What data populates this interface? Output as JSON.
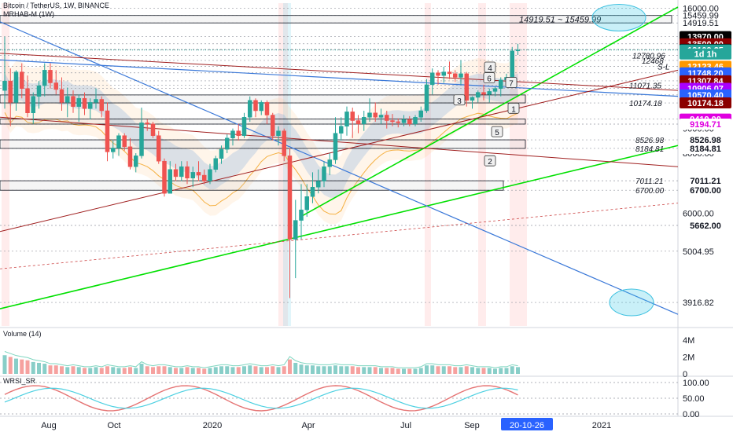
{
  "header": {
    "symbol": "Bitcoin / TetherUS, 1W, BINANCE",
    "indicator": "MRHAB-M (1W)"
  },
  "pane_titles": {
    "volume": "Volume (14)",
    "rsi": "WRSI_SR"
  },
  "price_scale": {
    "ticks": [
      "16000.00",
      "15459.99",
      "14919.51",
      "9000.00",
      "8000.00",
      "7000.00",
      "6000.00",
      "5004.95",
      "3916.82"
    ],
    "tags": [
      {
        "text": "13970.00",
        "bg": "#000000",
        "fg": "#ffffff"
      },
      {
        "text": "13500.00",
        "bg": "#8b0000",
        "fg": "#ffffff"
      },
      {
        "text": "13147.08",
        "bg": "#000000",
        "fg": "#ffffff"
      },
      {
        "text": "13109.25",
        "bg": "#26a69a",
        "fg": "#ffffff"
      },
      {
        "text": "1d 1h",
        "bg": "#26a69a",
        "fg": "#ffffff"
      },
      {
        "text": "12123.46",
        "bg": "#ff9800",
        "fg": "#ffffff"
      },
      {
        "text": "11748.20",
        "bg": "#2962ff",
        "fg": "#ffffff"
      },
      {
        "text": "11307.84",
        "bg": "#8b0000",
        "fg": "#ffffff"
      },
      {
        "text": "10906.07",
        "bg": "#aa00ff",
        "fg": "#ffffff"
      },
      {
        "text": "10570.40",
        "bg": "#2962ff",
        "fg": "#ffffff"
      },
      {
        "text": "10174.18",
        "bg": "#8b0000",
        "fg": "#ffffff"
      },
      {
        "text": "9419.00",
        "bg": "#e000e0",
        "fg": "#ffffff"
      },
      {
        "text": "9194.71",
        "bg": "#ffffff",
        "fg": "#e000e0"
      },
      {
        "text": "8526.98",
        "bg": "#ffffff",
        "fg": "#131722"
      },
      {
        "text": "8184.81",
        "bg": "#ffffff",
        "fg": "#131722"
      },
      {
        "text": "7011.21",
        "bg": "#ffffff",
        "fg": "#131722"
      },
      {
        "text": "6700.00",
        "bg": "#ffffff",
        "fg": "#131722"
      },
      {
        "text": "5662.00",
        "bg": "#ffffff",
        "fg": "#131722"
      }
    ]
  },
  "volume_scale": [
    "4M",
    "2M",
    "0"
  ],
  "rsi_scale": [
    "100.00",
    "50.00",
    "0.00"
  ],
  "time_axis": {
    "labels": [
      "Aug",
      "Oct",
      "2020",
      "Apr",
      "Jul",
      "Sep",
      "2021"
    ],
    "cursor_label": "20-10-26"
  },
  "annotations": {
    "zone_label": "14919.51 ~ 15459.99",
    "level_texts": [
      "12780.96",
      "12468",
      "S-L",
      "11071.35",
      "10174.18",
      "8526.98",
      "8184.81",
      "7011.21",
      "6700.00"
    ],
    "wave_labels": [
      "1",
      "2",
      "3",
      "4",
      "5",
      "6",
      "7"
    ]
  },
  "colors": {
    "up": "#26a69a",
    "down": "#ef5350",
    "trend_green": "#00e000",
    "trend_blue": "#3a78d8",
    "trend_red": "#a02020"
  },
  "chart_data": {
    "type": "candlestick",
    "series": "Bitcoin / TetherUS weekly",
    "ylim": [
      3500,
      16400
    ],
    "ohlc": [
      {
        "o": 10800,
        "h": 13970,
        "l": 9900,
        "c": 11300
      },
      {
        "o": 11300,
        "h": 12000,
        "l": 9100,
        "c": 10200
      },
      {
        "o": 10200,
        "h": 11900,
        "l": 9800,
        "c": 11800
      },
      {
        "o": 11800,
        "h": 12300,
        "l": 10400,
        "c": 10900
      },
      {
        "o": 10900,
        "h": 11600,
        "l": 9500,
        "c": 9700
      },
      {
        "o": 9700,
        "h": 10700,
        "l": 9200,
        "c": 10500
      },
      {
        "o": 10500,
        "h": 11300,
        "l": 9900,
        "c": 11050
      },
      {
        "o": 11050,
        "h": 12300,
        "l": 10500,
        "c": 11900
      },
      {
        "o": 11900,
        "h": 12300,
        "l": 10900,
        "c": 11200
      },
      {
        "o": 11200,
        "h": 11900,
        "l": 10600,
        "c": 10850
      },
      {
        "o": 10850,
        "h": 11500,
        "l": 9800,
        "c": 10200
      },
      {
        "o": 10200,
        "h": 10950,
        "l": 9500,
        "c": 10500
      },
      {
        "o": 10500,
        "h": 10800,
        "l": 9700,
        "c": 10000
      },
      {
        "o": 10000,
        "h": 10600,
        "l": 9300,
        "c": 10400
      },
      {
        "o": 10400,
        "h": 10700,
        "l": 9600,
        "c": 9900
      },
      {
        "o": 9900,
        "h": 10400,
        "l": 9400,
        "c": 10200
      },
      {
        "o": 10200,
        "h": 10900,
        "l": 9900,
        "c": 10350
      },
      {
        "o": 10350,
        "h": 10500,
        "l": 9500,
        "c": 9800
      },
      {
        "o": 9800,
        "h": 10200,
        "l": 7700,
        "c": 8050
      },
      {
        "o": 8050,
        "h": 8500,
        "l": 7800,
        "c": 8200
      },
      {
        "o": 8200,
        "h": 8800,
        "l": 7900,
        "c": 8700
      },
      {
        "o": 8700,
        "h": 8800,
        "l": 8100,
        "c": 8250
      },
      {
        "o": 8250,
        "h": 8600,
        "l": 7400,
        "c": 7500
      },
      {
        "o": 7500,
        "h": 8000,
        "l": 7300,
        "c": 7900
      },
      {
        "o": 7900,
        "h": 9950,
        "l": 7800,
        "c": 9250
      },
      {
        "o": 9250,
        "h": 9400,
        "l": 8900,
        "c": 9200
      },
      {
        "o": 9200,
        "h": 9300,
        "l": 8600,
        "c": 8700
      },
      {
        "o": 8700,
        "h": 8900,
        "l": 7600,
        "c": 7700
      },
      {
        "o": 7700,
        "h": 7800,
        "l": 6500,
        "c": 6600
      },
      {
        "o": 6600,
        "h": 7700,
        "l": 6700,
        "c": 7400
      },
      {
        "o": 7400,
        "h": 7600,
        "l": 7000,
        "c": 7150
      },
      {
        "o": 7150,
        "h": 7700,
        "l": 7000,
        "c": 7500
      },
      {
        "o": 7500,
        "h": 7700,
        "l": 6900,
        "c": 7100
      },
      {
        "o": 7100,
        "h": 7500,
        "l": 6800,
        "c": 7300
      },
      {
        "o": 7300,
        "h": 7700,
        "l": 7000,
        "c": 7200
      },
      {
        "o": 7200,
        "h": 7400,
        "l": 6900,
        "c": 7000
      },
      {
        "o": 7000,
        "h": 7600,
        "l": 6900,
        "c": 7400
      },
      {
        "o": 7400,
        "h": 7900,
        "l": 7300,
        "c": 7800
      },
      {
        "o": 7800,
        "h": 8300,
        "l": 7600,
        "c": 8150
      },
      {
        "o": 8150,
        "h": 8750,
        "l": 8000,
        "c": 8600
      },
      {
        "o": 8600,
        "h": 9000,
        "l": 8300,
        "c": 8900
      },
      {
        "o": 8900,
        "h": 9200,
        "l": 8500,
        "c": 8700
      },
      {
        "o": 8700,
        "h": 9700,
        "l": 8600,
        "c": 9500
      },
      {
        "o": 9500,
        "h": 10500,
        "l": 9300,
        "c": 10300
      },
      {
        "o": 10300,
        "h": 10400,
        "l": 9500,
        "c": 9800
      },
      {
        "o": 9800,
        "h": 10300,
        "l": 9600,
        "c": 10200
      },
      {
        "o": 10200,
        "h": 10300,
        "l": 9200,
        "c": 9600
      },
      {
        "o": 9600,
        "h": 9700,
        "l": 8500,
        "c": 8700
      },
      {
        "o": 8700,
        "h": 9100,
        "l": 8300,
        "c": 8900
      },
      {
        "o": 8900,
        "h": 9000,
        "l": 7700,
        "c": 7900
      },
      {
        "o": 7900,
        "h": 8200,
        "l": 4000,
        "c": 5300
      },
      {
        "o": 5300,
        "h": 6400,
        "l": 4400,
        "c": 5800
      },
      {
        "o": 5800,
        "h": 6900,
        "l": 5300,
        "c": 6100
      },
      {
        "o": 6100,
        "h": 6900,
        "l": 5900,
        "c": 6500
      },
      {
        "o": 6500,
        "h": 7300,
        "l": 6300,
        "c": 6800
      },
      {
        "o": 6800,
        "h": 7400,
        "l": 6600,
        "c": 7000
      },
      {
        "o": 7000,
        "h": 7700,
        "l": 6800,
        "c": 7500
      },
      {
        "o": 7500,
        "h": 8000,
        "l": 7200,
        "c": 7750
      },
      {
        "o": 7750,
        "h": 9500,
        "l": 7600,
        "c": 8800
      },
      {
        "o": 8800,
        "h": 9500,
        "l": 8500,
        "c": 9100
      },
      {
        "o": 9100,
        "h": 10000,
        "l": 8700,
        "c": 9750
      },
      {
        "o": 9750,
        "h": 9950,
        "l": 8600,
        "c": 9350
      },
      {
        "o": 9350,
        "h": 9600,
        "l": 8800,
        "c": 9200
      },
      {
        "o": 9200,
        "h": 9800,
        "l": 8900,
        "c": 9500
      },
      {
        "o": 9500,
        "h": 10400,
        "l": 9300,
        "c": 9700
      },
      {
        "o": 9700,
        "h": 10200,
        "l": 9300,
        "c": 9500
      },
      {
        "o": 9500,
        "h": 9900,
        "l": 9200,
        "c": 9600
      },
      {
        "o": 9600,
        "h": 9800,
        "l": 9000,
        "c": 9350
      },
      {
        "o": 9350,
        "h": 9650,
        "l": 9100,
        "c": 9300
      },
      {
        "o": 9300,
        "h": 9450,
        "l": 9050,
        "c": 9250
      },
      {
        "o": 9250,
        "h": 9600,
        "l": 9100,
        "c": 9400
      },
      {
        "o": 9400,
        "h": 9550,
        "l": 9100,
        "c": 9200
      },
      {
        "o": 9200,
        "h": 9600,
        "l": 9100,
        "c": 9500
      },
      {
        "o": 9500,
        "h": 10000,
        "l": 9300,
        "c": 9800
      },
      {
        "o": 9800,
        "h": 11400,
        "l": 9700,
        "c": 11100
      },
      {
        "o": 11100,
        "h": 12000,
        "l": 10600,
        "c": 11750
      },
      {
        "o": 11750,
        "h": 11900,
        "l": 11100,
        "c": 11600
      },
      {
        "o": 11600,
        "h": 12100,
        "l": 11200,
        "c": 11800
      },
      {
        "o": 11800,
        "h": 12400,
        "l": 11400,
        "c": 11700
      },
      {
        "o": 11700,
        "h": 11900,
        "l": 11250,
        "c": 11500
      },
      {
        "o": 11500,
        "h": 12480,
        "l": 11100,
        "c": 11700
      },
      {
        "o": 11700,
        "h": 11800,
        "l": 10000,
        "c": 10300
      },
      {
        "o": 10300,
        "h": 10500,
        "l": 9900,
        "c": 10450
      },
      {
        "o": 10450,
        "h": 10800,
        "l": 10200,
        "c": 10700
      },
      {
        "o": 10700,
        "h": 11100,
        "l": 10300,
        "c": 10600
      },
      {
        "o": 10600,
        "h": 10900,
        "l": 10200,
        "c": 10750
      },
      {
        "o": 10750,
        "h": 11000,
        "l": 10500,
        "c": 10900
      },
      {
        "o": 10900,
        "h": 11500,
        "l": 10500,
        "c": 11350
      },
      {
        "o": 11350,
        "h": 11700,
        "l": 11100,
        "c": 11500
      },
      {
        "o": 11500,
        "h": 13300,
        "l": 11300,
        "c": 13050
      },
      {
        "o": 13050,
        "h": 13500,
        "l": 12800,
        "c": 13109
      }
    ],
    "volume_millions": [
      2.2,
      2.0,
      1.8,
      1.7,
      1.6,
      1.4,
      1.3,
      1.2,
      1.0,
      1.0,
      0.9,
      0.8,
      0.9,
      0.8,
      0.7,
      0.7,
      0.8,
      0.7,
      0.9,
      0.8,
      0.7,
      0.7,
      0.8,
      0.7,
      1.2,
      0.9,
      0.8,
      0.9,
      0.9,
      0.8,
      0.7,
      0.7,
      0.8,
      0.7,
      0.7,
      0.6,
      0.7,
      0.8,
      0.9,
      0.9,
      0.8,
      0.8,
      0.9,
      1.0,
      0.9,
      0.8,
      0.8,
      0.9,
      0.8,
      0.9,
      1.7,
      1.3,
      1.1,
      1.0,
      1.0,
      0.9,
      0.9,
      0.9,
      1.0,
      0.9,
      0.9,
      0.9,
      0.8,
      0.8,
      0.8,
      0.8,
      0.7,
      0.7,
      0.7,
      0.6,
      0.6,
      0.6,
      0.6,
      0.7,
      1.0,
      1.0,
      0.9,
      0.9,
      0.9,
      0.8,
      0.8,
      0.9,
      0.8,
      0.7,
      0.7,
      0.7,
      0.6,
      0.7,
      0.7,
      0.9,
      0.8
    ],
    "volume_ylim": [
      0,
      5
    ],
    "rsi_ylim": [
      0,
      110
    ],
    "key_levels": [
      16000,
      15459.99,
      14919.51,
      13970,
      13500,
      13147.08,
      13109.25,
      12780.96,
      12468,
      12123.46,
      11748.2,
      11307.84,
      11071.35,
      10906.07,
      10570.4,
      10174.18,
      9419,
      9194.71,
      8526.98,
      8184.81,
      7011.21,
      6700,
      5662,
      5004.95,
      3916.82
    ]
  }
}
